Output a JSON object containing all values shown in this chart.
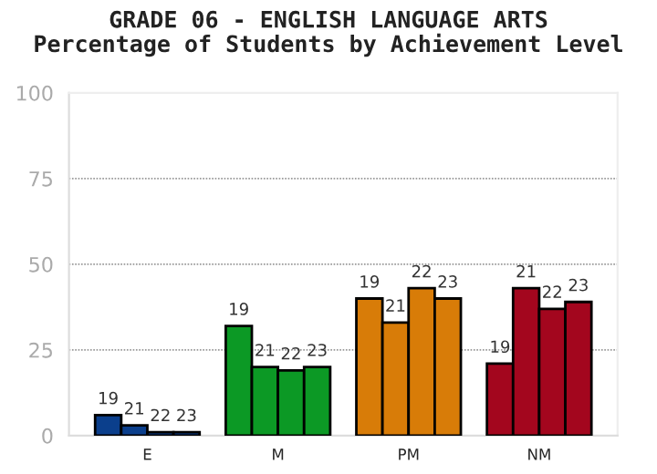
{
  "chart_data": {
    "type": "bar",
    "title": "GRADE 06 - ENGLISH LANGUAGE ARTS",
    "subtitle": "Percentage of Students by Achievement Level",
    "categories": [
      "E",
      "M",
      "PM",
      "NM"
    ],
    "series": [
      {
        "name": "19",
        "colors": [
          "#0b3f8c",
          "#0c9925",
          "#d87c08",
          "#a3061e"
        ],
        "values": [
          6,
          32,
          40,
          21
        ]
      },
      {
        "name": "21",
        "colors": [
          "#0b3f8c",
          "#0c9925",
          "#d87c08",
          "#a3061e"
        ],
        "values": [
          3,
          20,
          33,
          43
        ]
      },
      {
        "name": "22",
        "colors": [
          "#0b3f8c",
          "#0c9925",
          "#d87c08",
          "#a3061e"
        ],
        "values": [
          1,
          19,
          43,
          37
        ]
      },
      {
        "name": "23",
        "colors": [
          "#0b3f8c",
          "#0c9925",
          "#d87c08",
          "#a3061e"
        ],
        "values": [
          1,
          20,
          40,
          39
        ]
      }
    ],
    "ylim": [
      0,
      100
    ],
    "yticks": [
      0,
      25,
      50,
      75,
      100
    ],
    "grid": "y",
    "legend": false
  }
}
